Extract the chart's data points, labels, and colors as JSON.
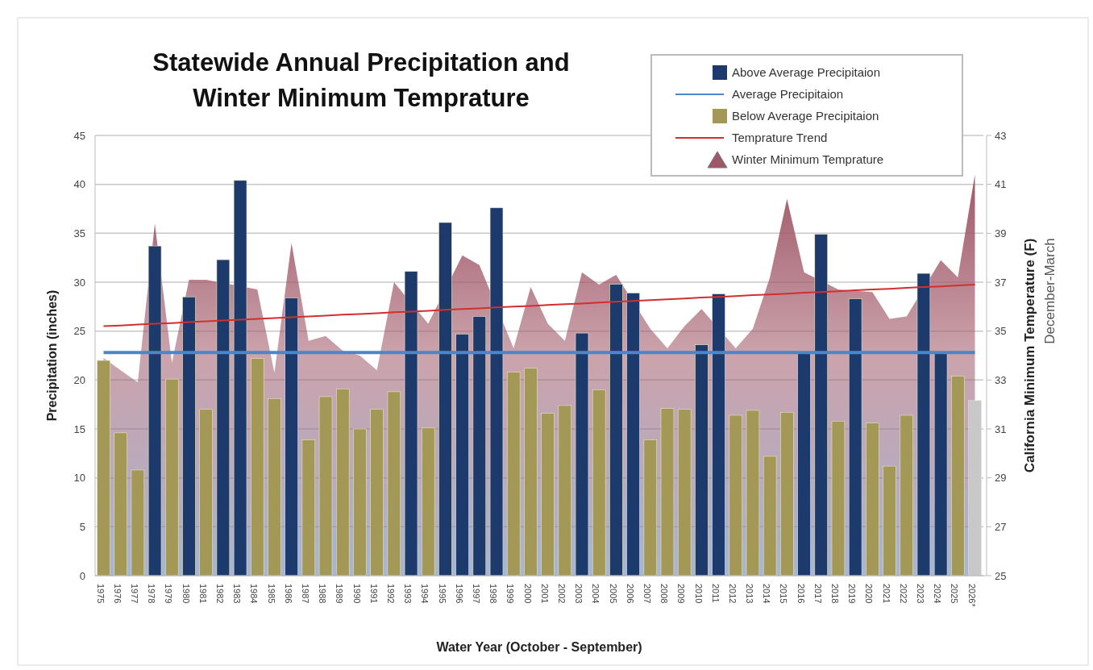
{
  "chart_data": {
    "type": "bar",
    "title": "Statewide Annual Precipitation and Winter Minimum Temprature",
    "xlabel": "Water Year (October - September)",
    "ylabel": "Precipitation (inches)",
    "y2label": "California Minimum Temperature (F)",
    "annotations": [
      "December-March"
    ],
    "categories": [
      "1975",
      "1976",
      "1977",
      "1978",
      "1979",
      "1980",
      "1981",
      "1982",
      "1983",
      "1984",
      "1985",
      "1986",
      "1987",
      "1988",
      "1989",
      "1990",
      "1991",
      "1992",
      "1993",
      "1994",
      "1995",
      "1996",
      "1997",
      "1998",
      "1999",
      "2000",
      "2001",
      "2002",
      "2003",
      "2004",
      "2005",
      "2006",
      "2007",
      "2008",
      "2009",
      "2010",
      "2011",
      "2012",
      "2013",
      "2014",
      "2015",
      "2016",
      "2017",
      "2018",
      "2019",
      "2020",
      "2021",
      "2022",
      "2023",
      "2024",
      "2025",
      "2026*"
    ],
    "series": [
      {
        "name": "Above Average Precipitaion",
        "color": "#1c3a6b",
        "values": [
          null,
          null,
          null,
          33.7,
          null,
          28.5,
          null,
          32.3,
          40.4,
          null,
          null,
          28.4,
          null,
          null,
          null,
          null,
          null,
          null,
          31.1,
          null,
          36.1,
          24.7,
          26.5,
          37.6,
          null,
          null,
          null,
          null,
          24.8,
          null,
          29.8,
          28.9,
          null,
          null,
          null,
          23.6,
          28.8,
          null,
          null,
          null,
          null,
          22.9,
          34.9,
          null,
          28.3,
          null,
          null,
          null,
          30.9,
          22.9,
          null,
          null
        ]
      },
      {
        "name": "Average Precipitaion",
        "type": "line",
        "color": "#4a86c8",
        "values": [
          22.8,
          22.8,
          22.8,
          22.8,
          22.8,
          22.8,
          22.8,
          22.8,
          22.8,
          22.8,
          22.8,
          22.8,
          22.8,
          22.8,
          22.8,
          22.8,
          22.8,
          22.8,
          22.8,
          22.8,
          22.8,
          22.8,
          22.8,
          22.8,
          22.8,
          22.8,
          22.8,
          22.8,
          22.8,
          22.8,
          22.8,
          22.8,
          22.8,
          22.8,
          22.8,
          22.8,
          22.8,
          22.8,
          22.8,
          22.8,
          22.8,
          22.8,
          22.8,
          22.8,
          22.8,
          22.8,
          22.8,
          22.8,
          22.8,
          22.8,
          22.8,
          22.8
        ]
      },
      {
        "name": "Below Average Precipitaion",
        "color": "#a39856",
        "values": [
          22.0,
          14.6,
          10.8,
          null,
          20.1,
          null,
          17.0,
          null,
          null,
          22.2,
          18.1,
          null,
          13.9,
          18.3,
          19.1,
          15.0,
          17.0,
          18.8,
          null,
          15.1,
          null,
          null,
          null,
          null,
          20.8,
          21.2,
          16.6,
          17.4,
          null,
          19.0,
          null,
          null,
          13.9,
          17.1,
          17.0,
          null,
          null,
          16.4,
          16.9,
          12.2,
          16.7,
          null,
          null,
          15.8,
          null,
          15.6,
          11.2,
          16.4,
          null,
          null,
          20.4,
          null
        ]
      },
      {
        "name": "Temprature Trend",
        "type": "line",
        "axis": "y2",
        "color": "#d03030",
        "values": [
          35.2,
          35.23,
          35.27,
          35.3,
          35.33,
          35.37,
          35.4,
          35.43,
          35.47,
          35.5,
          35.53,
          35.57,
          35.6,
          35.63,
          35.67,
          35.7,
          35.73,
          35.77,
          35.8,
          35.83,
          35.87,
          35.9,
          35.93,
          35.97,
          36.0,
          36.03,
          36.07,
          36.1,
          36.13,
          36.17,
          36.2,
          36.23,
          36.27,
          36.3,
          36.33,
          36.37,
          36.4,
          36.43,
          36.47,
          36.5,
          36.53,
          36.57,
          36.6,
          36.63,
          36.67,
          36.7,
          36.73,
          36.77,
          36.8,
          36.83,
          36.87,
          36.9
        ]
      },
      {
        "name": "Winter Minimum Temprature",
        "type": "area",
        "axis": "y2",
        "color": "#a05868",
        "values": [
          33.9,
          33.4,
          32.9,
          39.4,
          33.7,
          37.1,
          37.1,
          null,
          null,
          36.7,
          33.3,
          38.6,
          34.6,
          34.8,
          34.2,
          34.0,
          33.4,
          37.0,
          null,
          35.3,
          null,
          38.1,
          37.7,
          null,
          34.3,
          36.8,
          35.3,
          34.6,
          37.4,
          36.9,
          37.3,
          null,
          35.1,
          34.3,
          35.2,
          35.9,
          null,
          34.3,
          35.1,
          37.2,
          40.4,
          37.4,
          null,
          36.7,
          null,
          36.6,
          35.5,
          35.6,
          null,
          37.9,
          37.2,
          41.4
        ]
      },
      {
        "color": "#c8c8c8",
        "values": [
          null,
          null,
          null,
          null,
          null,
          null,
          null,
          null,
          null,
          null,
          null,
          null,
          null,
          null,
          null,
          null,
          null,
          null,
          null,
          null,
          null,
          null,
          null,
          null,
          null,
          null,
          null,
          null,
          null,
          null,
          null,
          null,
          null,
          null,
          null,
          null,
          null,
          null,
          null,
          null,
          null,
          null,
          null,
          null,
          null,
          null,
          null,
          null,
          null,
          null,
          null,
          17.9
        ]
      }
    ],
    "ylim": [
      0,
      45
    ],
    "yticks": [
      0,
      5,
      10,
      15,
      20,
      25,
      30,
      35,
      40,
      45
    ],
    "y2lim": [
      25,
      43
    ],
    "y2ticks": [
      25,
      27,
      29,
      31,
      33,
      35,
      37,
      39,
      41,
      43
    ],
    "grid": "y",
    "legend": "top right"
  }
}
